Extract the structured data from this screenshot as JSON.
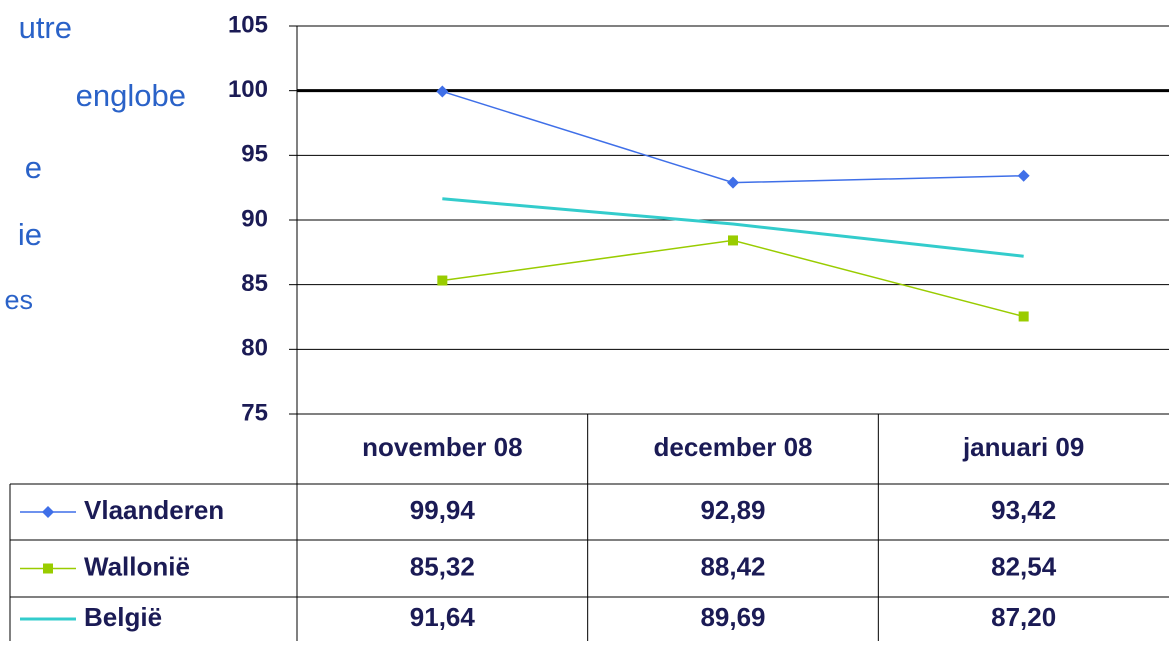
{
  "side_text": [
    "utre",
    "englobe",
    "e",
    "ie",
    "es"
  ],
  "chart_data": {
    "type": "line",
    "categories": [
      "november 08",
      "december 08",
      "januari 09"
    ],
    "series": [
      {
        "name": "Vlaanderen",
        "color": "#3f6fe8",
        "marker": "diamond",
        "values": [
          99.94,
          92.89,
          93.42
        ],
        "value_labels": [
          "99,94",
          "92,89",
          "93,42"
        ]
      },
      {
        "name": "Wallonië",
        "color": "#99cc00",
        "marker": "square",
        "values": [
          85.32,
          88.42,
          82.54
        ],
        "value_labels": [
          "85,32",
          "88,42",
          "82,54"
        ]
      },
      {
        "name": "België",
        "color": "#33cccc",
        "marker": "none",
        "values": [
          91.64,
          89.69,
          87.2
        ],
        "value_labels": [
          "91,64",
          "89,69",
          "87,20"
        ]
      }
    ],
    "ylim": [
      75,
      105
    ],
    "yticks": [
      75,
      80,
      85,
      90,
      95,
      100,
      105
    ],
    "grid": true,
    "reference_line": 100
  }
}
